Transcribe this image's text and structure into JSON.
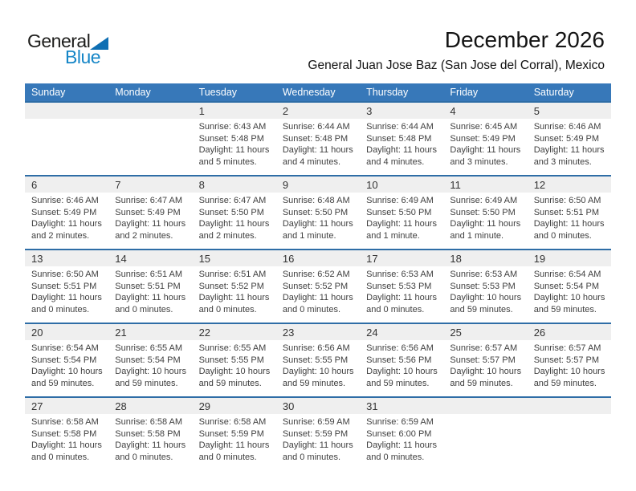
{
  "logo": {
    "general": "General",
    "blue": "Blue"
  },
  "header": {
    "title": "December 2026",
    "subtitle": "General Juan Jose Baz (San Jose del Corral), Mexico"
  },
  "colors": {
    "header_blue": "#3778b9",
    "separator_blue": "#2e6da6",
    "band_gray": "#efefef",
    "logo_blue": "#1686c7",
    "triangle_blue": "#0f6fb3"
  },
  "calendar": {
    "day_headers": [
      "Sunday",
      "Monday",
      "Tuesday",
      "Wednesday",
      "Thursday",
      "Friday",
      "Saturday"
    ],
    "weeks": [
      [
        {
          "day": ""
        },
        {
          "day": ""
        },
        {
          "day": "1",
          "sunrise": "Sunrise: 6:43 AM",
          "sunset": "Sunset: 5:48 PM",
          "daylight": "Daylight: 11 hours and 5 minutes."
        },
        {
          "day": "2",
          "sunrise": "Sunrise: 6:44 AM",
          "sunset": "Sunset: 5:48 PM",
          "daylight": "Daylight: 11 hours and 4 minutes."
        },
        {
          "day": "3",
          "sunrise": "Sunrise: 6:44 AM",
          "sunset": "Sunset: 5:48 PM",
          "daylight": "Daylight: 11 hours and 4 minutes."
        },
        {
          "day": "4",
          "sunrise": "Sunrise: 6:45 AM",
          "sunset": "Sunset: 5:49 PM",
          "daylight": "Daylight: 11 hours and 3 minutes."
        },
        {
          "day": "5",
          "sunrise": "Sunrise: 6:46 AM",
          "sunset": "Sunset: 5:49 PM",
          "daylight": "Daylight: 11 hours and 3 minutes."
        }
      ],
      [
        {
          "day": "6",
          "sunrise": "Sunrise: 6:46 AM",
          "sunset": "Sunset: 5:49 PM",
          "daylight": "Daylight: 11 hours and 2 minutes."
        },
        {
          "day": "7",
          "sunrise": "Sunrise: 6:47 AM",
          "sunset": "Sunset: 5:49 PM",
          "daylight": "Daylight: 11 hours and 2 minutes."
        },
        {
          "day": "8",
          "sunrise": "Sunrise: 6:47 AM",
          "sunset": "Sunset: 5:50 PM",
          "daylight": "Daylight: 11 hours and 2 minutes."
        },
        {
          "day": "9",
          "sunrise": "Sunrise: 6:48 AM",
          "sunset": "Sunset: 5:50 PM",
          "daylight": "Daylight: 11 hours and 1 minute."
        },
        {
          "day": "10",
          "sunrise": "Sunrise: 6:49 AM",
          "sunset": "Sunset: 5:50 PM",
          "daylight": "Daylight: 11 hours and 1 minute."
        },
        {
          "day": "11",
          "sunrise": "Sunrise: 6:49 AM",
          "sunset": "Sunset: 5:50 PM",
          "daylight": "Daylight: 11 hours and 1 minute."
        },
        {
          "day": "12",
          "sunrise": "Sunrise: 6:50 AM",
          "sunset": "Sunset: 5:51 PM",
          "daylight": "Daylight: 11 hours and 0 minutes."
        }
      ],
      [
        {
          "day": "13",
          "sunrise": "Sunrise: 6:50 AM",
          "sunset": "Sunset: 5:51 PM",
          "daylight": "Daylight: 11 hours and 0 minutes."
        },
        {
          "day": "14",
          "sunrise": "Sunrise: 6:51 AM",
          "sunset": "Sunset: 5:51 PM",
          "daylight": "Daylight: 11 hours and 0 minutes."
        },
        {
          "day": "15",
          "sunrise": "Sunrise: 6:51 AM",
          "sunset": "Sunset: 5:52 PM",
          "daylight": "Daylight: 11 hours and 0 minutes."
        },
        {
          "day": "16",
          "sunrise": "Sunrise: 6:52 AM",
          "sunset": "Sunset: 5:52 PM",
          "daylight": "Daylight: 11 hours and 0 minutes."
        },
        {
          "day": "17",
          "sunrise": "Sunrise: 6:53 AM",
          "sunset": "Sunset: 5:53 PM",
          "daylight": "Daylight: 11 hours and 0 minutes."
        },
        {
          "day": "18",
          "sunrise": "Sunrise: 6:53 AM",
          "sunset": "Sunset: 5:53 PM",
          "daylight": "Daylight: 10 hours and 59 minutes."
        },
        {
          "day": "19",
          "sunrise": "Sunrise: 6:54 AM",
          "sunset": "Sunset: 5:54 PM",
          "daylight": "Daylight: 10 hours and 59 minutes."
        }
      ],
      [
        {
          "day": "20",
          "sunrise": "Sunrise: 6:54 AM",
          "sunset": "Sunset: 5:54 PM",
          "daylight": "Daylight: 10 hours and 59 minutes."
        },
        {
          "day": "21",
          "sunrise": "Sunrise: 6:55 AM",
          "sunset": "Sunset: 5:54 PM",
          "daylight": "Daylight: 10 hours and 59 minutes."
        },
        {
          "day": "22",
          "sunrise": "Sunrise: 6:55 AM",
          "sunset": "Sunset: 5:55 PM",
          "daylight": "Daylight: 10 hours and 59 minutes."
        },
        {
          "day": "23",
          "sunrise": "Sunrise: 6:56 AM",
          "sunset": "Sunset: 5:55 PM",
          "daylight": "Daylight: 10 hours and 59 minutes."
        },
        {
          "day": "24",
          "sunrise": "Sunrise: 6:56 AM",
          "sunset": "Sunset: 5:56 PM",
          "daylight": "Daylight: 10 hours and 59 minutes."
        },
        {
          "day": "25",
          "sunrise": "Sunrise: 6:57 AM",
          "sunset": "Sunset: 5:57 PM",
          "daylight": "Daylight: 10 hours and 59 minutes."
        },
        {
          "day": "26",
          "sunrise": "Sunrise: 6:57 AM",
          "sunset": "Sunset: 5:57 PM",
          "daylight": "Daylight: 10 hours and 59 minutes."
        }
      ],
      [
        {
          "day": "27",
          "sunrise": "Sunrise: 6:58 AM",
          "sunset": "Sunset: 5:58 PM",
          "daylight": "Daylight: 11 hours and 0 minutes."
        },
        {
          "day": "28",
          "sunrise": "Sunrise: 6:58 AM",
          "sunset": "Sunset: 5:58 PM",
          "daylight": "Daylight: 11 hours and 0 minutes."
        },
        {
          "day": "29",
          "sunrise": "Sunrise: 6:58 AM",
          "sunset": "Sunset: 5:59 PM",
          "daylight": "Daylight: 11 hours and 0 minutes."
        },
        {
          "day": "30",
          "sunrise": "Sunrise: 6:59 AM",
          "sunset": "Sunset: 5:59 PM",
          "daylight": "Daylight: 11 hours and 0 minutes."
        },
        {
          "day": "31",
          "sunrise": "Sunrise: 6:59 AM",
          "sunset": "Sunset: 6:00 PM",
          "daylight": "Daylight: 11 hours and 0 minutes."
        },
        {
          "day": ""
        },
        {
          "day": ""
        }
      ]
    ]
  }
}
